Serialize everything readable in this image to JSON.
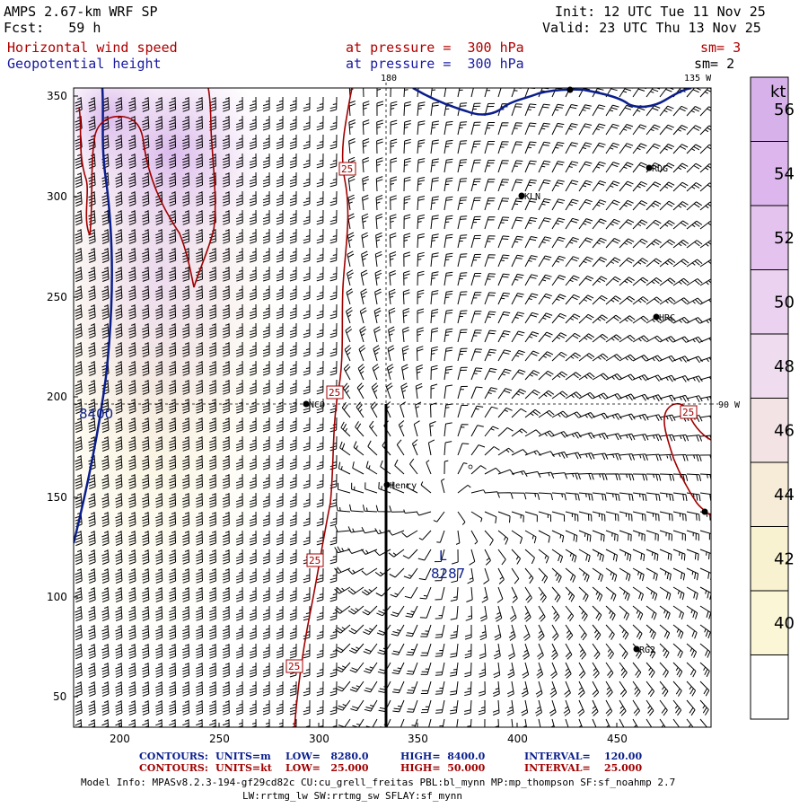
{
  "header": {
    "model": "AMPS 2.67-km WRF SP",
    "forecast": "Fcst:   59 h",
    "init": "Init: 12 UTC Tue 11 Nov 25",
    "valid": "Valid: 23 UTC Thu 13 Nov 25",
    "field1": "Horizontal wind speed",
    "field2": "Geopotential height",
    "level1": "at pressure =  300 hPa",
    "level2": "at pressure =  300 hPa",
    "sm1": "sm= 3",
    "sm2": "sm= 2"
  },
  "map": {
    "lon_top_180": "180",
    "lon_top_135w": "135 W",
    "lon_right_90w": "90 W",
    "x_ticks": [
      "200",
      "250",
      "300",
      "350",
      "400",
      "450"
    ],
    "y_ticks": [
      "350",
      "300",
      "250",
      "200",
      "150",
      "100",
      "50"
    ],
    "height_label": "8400",
    "low_marker": "L",
    "low_value": "8287",
    "wind_contour_label": "25",
    "stations": [
      "NCO",
      "Henry",
      "KLN",
      "RDG",
      "HRC",
      "RG2"
    ]
  },
  "colorbar": {
    "unit": "kt",
    "labels": [
      "56",
      "54",
      "52",
      "50",
      "48",
      "46",
      "44",
      "42",
      "40"
    ],
    "colors": [
      "#dcb6ec",
      "#e4c4ee",
      "#ead2f0",
      "#efdcef",
      "#f3e3e4",
      "#f6ecd8",
      "#f8f2d0",
      "#faf6d6",
      "#ffffff"
    ]
  },
  "footer": {
    "contours1_label": "CONTOURS:",
    "contours1_units": "UNITS=m",
    "contours1_low": "LOW=   8280.0",
    "contours1_high": "HIGH=  8400.0",
    "contours1_interval": "INTERVAL=    120.00",
    "contours2_label": "CONTOURS:",
    "contours2_units": "UNITS=kt",
    "contours2_low": "LOW=   25.000",
    "contours2_high": "HIGH=  50.000",
    "contours2_interval": "INTERVAL=    25.000",
    "model_info_1": "Model Info: MPASv8.2.3-194-gf29cd82c CU:cu_grell_freitas PBL:bl_mynn MP:mp_thompson SF:sf_noahmp 2.7",
    "model_info_2": "LW:rrtmg_lw SW:rrtmg_sw SFLAY:sf_mynn"
  },
  "colors": {
    "height_contour": "#0a1e8c",
    "wind_contour": "#a00000",
    "footer_blue": "#0a1e8c",
    "footer_red": "#a00000"
  }
}
